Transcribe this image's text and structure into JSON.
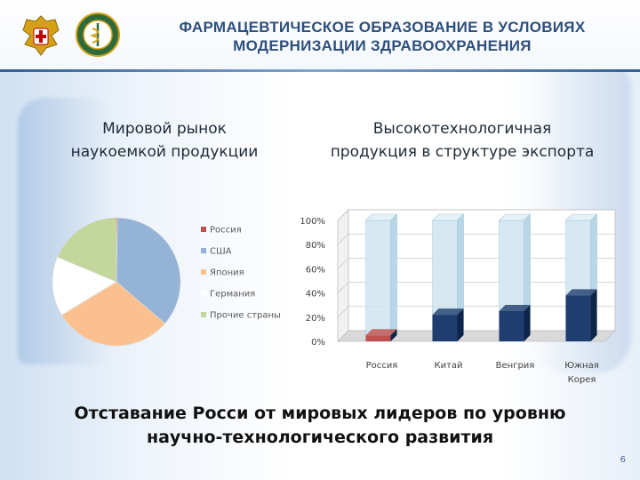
{
  "title": {
    "line1": "ФАРМАЦЕВТИЧЕСКОЕ ОБРАЗОВАНИЕ В УСЛОВИЯХ",
    "line2": "МОДЕРНИЗАЦИИ ЗДРАВООХРАНЕНИЯ"
  },
  "colors": {
    "title": "#2d4f7c",
    "bar_front": "#1f3d6e",
    "bar_back": "#cfe6f2",
    "russia_bar": "#c0504d"
  },
  "emblems": [
    "state-emblem-icon",
    "pharmacy-emblem-icon"
  ],
  "left_caption": {
    "line1": "Мировой рынок",
    "line2": "наукоемкой продукции"
  },
  "right_caption": {
    "line1": "Высокотехнологичная",
    "line2": "продукция в структуре экспорта"
  },
  "chart_data": [
    {
      "type": "pie",
      "title": "",
      "categories": [
        "Россия",
        "США",
        "Япония",
        "Германия",
        "Прочие страны"
      ],
      "values": [
        0.3,
        36,
        30,
        15,
        18.7
      ],
      "colors": [
        "#c0504d",
        "#95b3d7",
        "#fac090",
        "#ffffff",
        "#c3d69b"
      ],
      "legend": "right"
    },
    {
      "type": "bar",
      "title": "",
      "categories": [
        "Россия",
        "Китай",
        "Венгрия",
        "Южная Корея"
      ],
      "category_lines": [
        [
          "Россия"
        ],
        [
          "Китай"
        ],
        [
          "Венгрия"
        ],
        [
          "Южная",
          "Корея"
        ]
      ],
      "values": [
        5,
        22,
        25,
        38
      ],
      "full": [
        100,
        100,
        100,
        100
      ],
      "yticks": [
        "0%",
        "20%",
        "40%",
        "60%",
        "80%",
        "100%"
      ],
      "ylim": [
        0,
        100
      ],
      "grid": true
    }
  ],
  "conclusion": {
    "line1": "Отставание Росси от мировых лидеров по уровню",
    "line2": "научно-технологического развития"
  },
  "page_number": "6"
}
